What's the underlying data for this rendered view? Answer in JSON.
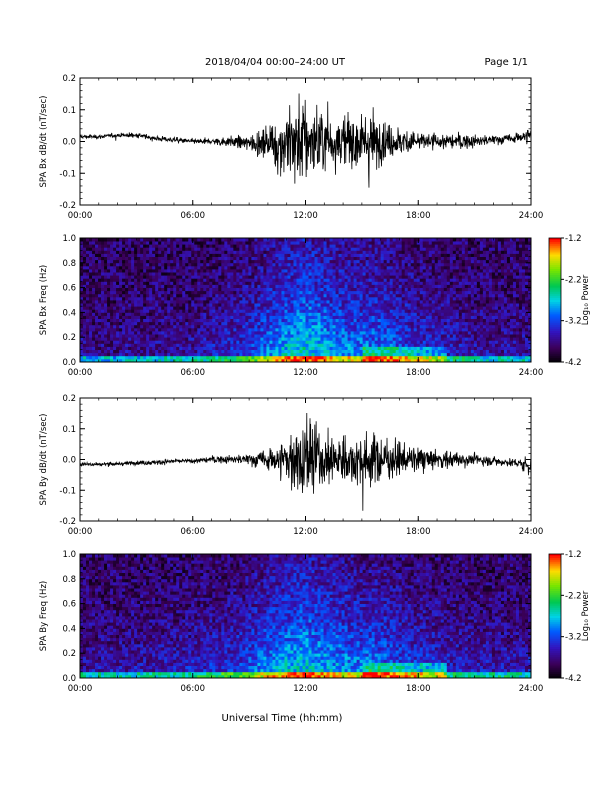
{
  "header": {
    "title": "2018/04/04   00:00–24:00 UT",
    "page": "Page 1/1"
  },
  "footer": {
    "xlabel": "Universal Time (hh:mm)"
  },
  "colorbar": {
    "label": "Log₁₀ Power",
    "ticks": [
      "-1.2",
      "-2.2",
      "-3.2",
      "-4.2"
    ],
    "range": [
      -4.2,
      -1.2
    ]
  },
  "chart_data": [
    {
      "type": "line",
      "title": "",
      "xlabel": "",
      "ylabel": "SPA Bx dB/dt (nT/sec)",
      "xticks": [
        "00:00",
        "06:00",
        "12:00",
        "18:00",
        "24:00"
      ],
      "yticks": [
        "0.2",
        "0.1",
        "0.0",
        "-0.1",
        "-0.2"
      ],
      "xlim": [
        0,
        24
      ],
      "ylim": [
        -0.2,
        0.2
      ],
      "series": [
        {
          "x": [
            0,
            1,
            2,
            3,
            4,
            5,
            6,
            7,
            8,
            9,
            10,
            10.5,
            11,
            11.5,
            12,
            12.5,
            13,
            13.5,
            14,
            14.5,
            15,
            15.5,
            16,
            16.5,
            17,
            17.5,
            18,
            19,
            20,
            21,
            22,
            23,
            24
          ],
          "offset": [
            0.015,
            0.015,
            0.02,
            0.02,
            0.01,
            0.005,
            0.0,
            0.0,
            0.0,
            -0.005,
            -0.005,
            -0.01,
            0.0,
            0.0,
            0.0,
            0.0,
            0.0,
            0.0,
            0.0,
            0.0,
            0.0,
            0.0,
            0.0,
            0.0,
            0.0,
            0.0,
            0.0,
            0.0,
            0.0,
            0.0,
            0.005,
            0.01,
            0.02
          ],
          "amplitude": [
            0.01,
            0.01,
            0.01,
            0.012,
            0.012,
            0.012,
            0.012,
            0.015,
            0.025,
            0.035,
            0.08,
            0.12,
            0.2,
            0.22,
            0.22,
            0.2,
            0.13,
            0.12,
            0.12,
            0.14,
            0.12,
            0.15,
            0.1,
            0.08,
            0.07,
            0.06,
            0.05,
            0.04,
            0.035,
            0.03,
            0.025,
            0.02,
            0.04
          ]
        }
      ]
    },
    {
      "type": "heatmap",
      "title": "",
      "xlabel": "",
      "ylabel": "SPA Bx Freq (Hz)",
      "xticks": [
        "00:00",
        "06:00",
        "12:00",
        "18:00",
        "24:00"
      ],
      "yticks": [
        "1.0",
        "0.8",
        "0.6",
        "0.4",
        "0.2",
        "0.0"
      ],
      "xlim": [
        0,
        24
      ],
      "ylim": [
        0,
        1.0
      ],
      "zlim": [
        -4.2,
        -1.2
      ],
      "activity_hours": [
        0,
        2,
        4,
        6,
        8,
        9,
        10,
        11,
        12,
        13,
        14,
        15,
        16,
        17,
        18,
        20,
        22,
        24
      ],
      "activity_level": [
        0.15,
        0.15,
        0.18,
        0.22,
        0.35,
        0.45,
        0.6,
        0.75,
        0.85,
        0.75,
        0.65,
        0.62,
        0.6,
        0.5,
        0.4,
        0.28,
        0.2,
        0.2
      ]
    },
    {
      "type": "line",
      "title": "",
      "xlabel": "",
      "ylabel": "SPA By dB/dt (nT/sec)",
      "xticks": [
        "00:00",
        "06:00",
        "12:00",
        "18:00",
        "24:00"
      ],
      "yticks": [
        "0.2",
        "0.1",
        "0.0",
        "-0.1",
        "-0.2"
      ],
      "xlim": [
        0,
        24
      ],
      "ylim": [
        -0.2,
        0.2
      ],
      "series": [
        {
          "x": [
            0,
            1,
            2,
            3,
            4,
            5,
            6,
            7,
            8,
            9,
            10,
            10.5,
            11,
            11.5,
            12,
            12.5,
            13,
            13.5,
            14,
            14.5,
            15,
            15.5,
            16,
            16.5,
            17,
            17.5,
            18,
            19,
            20,
            21,
            22,
            23,
            24
          ],
          "offset": [
            -0.015,
            -0.015,
            -0.015,
            -0.01,
            -0.01,
            -0.005,
            -0.005,
            0.0,
            0.0,
            0.0,
            0.0,
            0.0,
            0.0,
            0.0,
            0.0,
            0.0,
            0.0,
            0.0,
            0.0,
            0.0,
            0.0,
            0.0,
            0.0,
            0.0,
            0.0,
            0.0,
            0.0,
            0.0,
            0.0,
            0.0,
            -0.005,
            -0.01,
            -0.02
          ],
          "amplitude": [
            0.01,
            0.01,
            0.01,
            0.01,
            0.012,
            0.012,
            0.012,
            0.015,
            0.02,
            0.03,
            0.05,
            0.08,
            0.12,
            0.18,
            0.22,
            0.2,
            0.12,
            0.12,
            0.13,
            0.13,
            0.13,
            0.13,
            0.11,
            0.09,
            0.08,
            0.07,
            0.06,
            0.05,
            0.04,
            0.03,
            0.025,
            0.02,
            0.05
          ]
        }
      ]
    },
    {
      "type": "heatmap",
      "title": "",
      "xlabel": "",
      "ylabel": "SPA By Freq (Hz)",
      "xticks": [
        "00:00",
        "06:00",
        "12:00",
        "18:00",
        "24:00"
      ],
      "yticks": [
        "1.0",
        "0.8",
        "0.6",
        "0.4",
        "0.2",
        "0.0"
      ],
      "xlim": [
        0,
        24
      ],
      "ylim": [
        0,
        1.0
      ],
      "zlim": [
        -4.2,
        -1.2
      ],
      "activity_hours": [
        0,
        2,
        4,
        6,
        8,
        9,
        10,
        11,
        12,
        13,
        14,
        15,
        16,
        17,
        18,
        20,
        22,
        24
      ],
      "activity_level": [
        0.2,
        0.22,
        0.25,
        0.3,
        0.4,
        0.5,
        0.65,
        0.75,
        0.8,
        0.72,
        0.65,
        0.6,
        0.58,
        0.5,
        0.42,
        0.3,
        0.25,
        0.25
      ]
    }
  ]
}
